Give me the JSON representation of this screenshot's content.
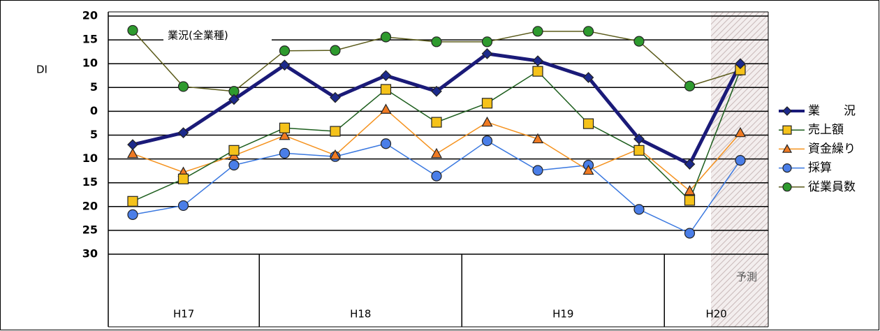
{
  "chart_data": {
    "type": "line",
    "annotation": "業況(全業種)",
    "y_label": "DI",
    "forecast_label": "予測",
    "groups": [
      "H17",
      "H18",
      "H19",
      "H20"
    ],
    "categories": [
      null,
      null,
      null,
      null,
      null,
      null,
      null,
      null,
      null,
      null,
      null,
      null,
      null
    ],
    "ylim": [
      -30,
      20
    ],
    "yticks": [
      {
        "value": -30,
        "label": "30"
      },
      {
        "value": -25,
        "label": "25"
      },
      {
        "value": -20,
        "label": "20"
      },
      {
        "value": -15,
        "label": "15"
      },
      {
        "value": -10,
        "label": "10"
      },
      {
        "value": -5,
        "label": "5"
      },
      0,
      5,
      10,
      15,
      20
    ],
    "grid": true,
    "legend": "right",
    "series": [
      {
        "name": "業　　況",
        "color": "#1c2a8c",
        "line_color": "#1a1a78",
        "marker": "diamond",
        "values": [
          -7,
          -4.5,
          2.5,
          9.7,
          2.9,
          7.5,
          4.2,
          12.1,
          10.6,
          7.1,
          -5.8,
          -11.1,
          10
        ]
      },
      {
        "name": "売上額",
        "color": "#f5c21a",
        "line_color": "#1d5e1d",
        "marker": "square",
        "values": [
          -18.9,
          -14.2,
          -8.2,
          -3.5,
          -4.2,
          4.6,
          -2.3,
          1.7,
          8.4,
          -2.6,
          -8.2,
          -18.7,
          8.7
        ]
      },
      {
        "name": "資金繰り",
        "color": "#f07a22",
        "line_color": "#f5921e",
        "marker": "triangle",
        "values": [
          -8.9,
          -12.8,
          -9.3,
          -5.1,
          -9.2,
          0.4,
          -8.9,
          -2.3,
          -5.8,
          -12.4,
          -7.9,
          -16.7,
          -4.5
        ]
      },
      {
        "name": "採算",
        "color": "#4a7ee8",
        "line_color": "#3a78e0",
        "marker": "circle",
        "values": [
          -21.7,
          -19.8,
          -11.3,
          -8.8,
          -9.5,
          -6.8,
          -13.6,
          -6.2,
          -12.4,
          -11.3,
          -20.6,
          -25.6,
          -10.3
        ]
      },
      {
        "name": "従業員数",
        "color": "#2e9a2e",
        "line_color": "#5a5a1a",
        "marker": "circle",
        "values": [
          17,
          5.2,
          4.2,
          12.7,
          12.8,
          15.6,
          14.6,
          14.6,
          16.8,
          16.8,
          14.7,
          5.3,
          8.6
        ]
      }
    ]
  }
}
